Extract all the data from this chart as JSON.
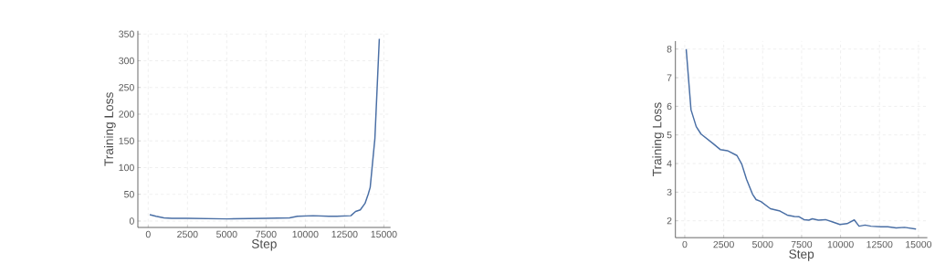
{
  "chart_data": [
    {
      "type": "line",
      "xlabel": "Step",
      "ylabel": "Training Loss",
      "color": "#4a6fa5",
      "grid": true,
      "x": [
        100,
        500,
        1000,
        1500,
        2500,
        5000,
        7500,
        9000,
        9500,
        10500,
        11500,
        12000,
        12900,
        13200,
        13500,
        13800,
        14000,
        14130,
        14430,
        14710
      ],
      "values": [
        12,
        9,
        6,
        5,
        5,
        4,
        5,
        6,
        9,
        10,
        9,
        9,
        10,
        18,
        21,
        33,
        50,
        63,
        155,
        341
      ],
      "xlim": [
        -657,
        15424
      ],
      "ylim": [
        -12,
        356
      ],
      "xticks": [
        0,
        2500,
        5000,
        7500,
        10000,
        12500,
        15000
      ],
      "yticks": [
        0,
        50,
        100,
        150,
        200,
        250,
        300,
        350
      ]
    },
    {
      "type": "line",
      "xlabel": "Step",
      "ylabel": "Training Loss",
      "color": "#4a6fa5",
      "grid": true,
      "x": [
        92,
        400,
        737,
        1045,
        1813,
        2274,
        2735,
        3350,
        3657,
        3964,
        4348,
        4578,
        4886,
        5500,
        6115,
        6576,
        7037,
        7345,
        7652,
        7960,
        8190,
        8574,
        9035,
        9496,
        9957,
        10418,
        10880,
        11187,
        11571,
        11955,
        12569,
        13030,
        13568,
        14106,
        14843
      ],
      "values": [
        8.0,
        5.88,
        5.29,
        5.03,
        4.7,
        4.49,
        4.45,
        4.28,
        3.98,
        3.45,
        2.93,
        2.74,
        2.67,
        2.42,
        2.34,
        2.2,
        2.15,
        2.14,
        2.04,
        2.02,
        2.07,
        2.02,
        2.04,
        1.96,
        1.87,
        1.9,
        2.03,
        1.81,
        1.85,
        1.81,
        1.79,
        1.79,
        1.75,
        1.77,
        1.71
      ],
      "xlim": [
        -600,
        15570
      ],
      "ylim": [
        1.41,
        8.28
      ],
      "xticks": [
        0,
        2500,
        5000,
        7500,
        10000,
        12500,
        15000
      ],
      "yticks": [
        2,
        3,
        4,
        5,
        6,
        7,
        8
      ]
    }
  ]
}
